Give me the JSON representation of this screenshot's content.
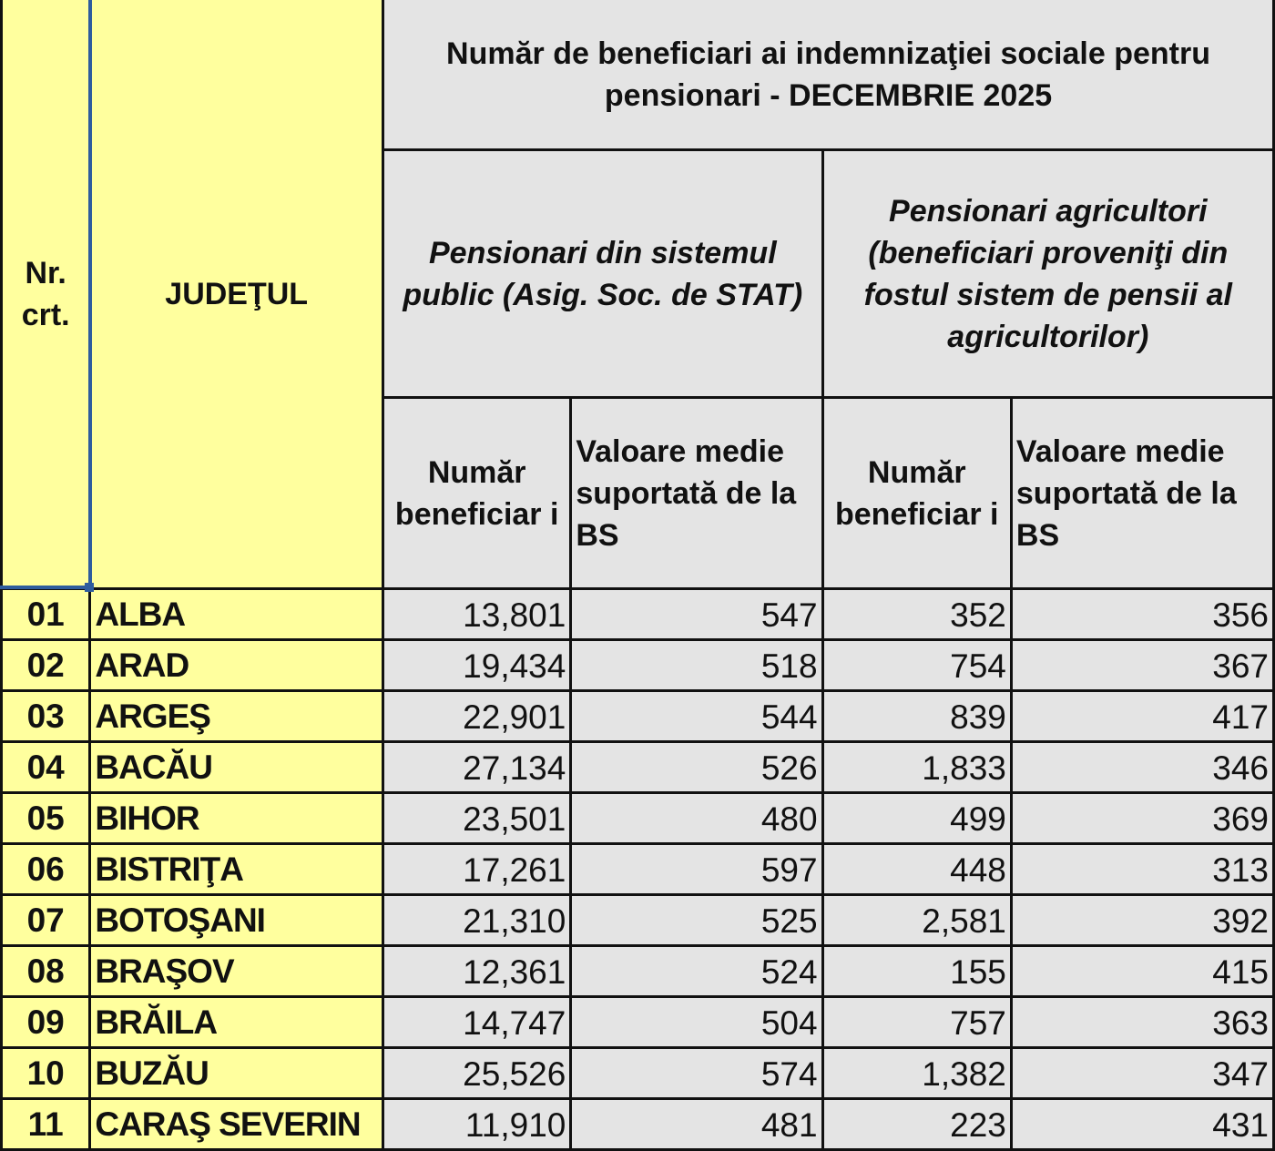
{
  "header": {
    "nr": "Nr. crt.",
    "judet": "JUDEŢUL",
    "title": "Număr de beneficiari ai indemnizaţiei sociale pentru pensionari - DECEMBRIE 2025",
    "group1": "Pensionari din sistemul public (Asig. Soc. de STAT)",
    "group2": "Pensionari agricultori (beneficiari proveniţi din fostul sistem de pensii al agricultorilor)",
    "col_numar": "Număr beneficiar i",
    "col_valoare": "Valoare medie suportată de la BS"
  },
  "colors": {
    "yellow": "#ffff9e",
    "gray": "#e4e4e4",
    "selection": "#2e5c9e"
  },
  "rows": [
    {
      "nr": "01",
      "judet": "ALBA",
      "pub_nr": "13,801",
      "pub_val": "547",
      "agr_nr": "352",
      "agr_val": "356"
    },
    {
      "nr": "02",
      "judet": "ARAD",
      "pub_nr": "19,434",
      "pub_val": "518",
      "agr_nr": "754",
      "agr_val": "367"
    },
    {
      "nr": "03",
      "judet": "ARGEŞ",
      "pub_nr": "22,901",
      "pub_val": "544",
      "agr_nr": "839",
      "agr_val": "417"
    },
    {
      "nr": "04",
      "judet": "BACĂU",
      "pub_nr": "27,134",
      "pub_val": "526",
      "agr_nr": "1,833",
      "agr_val": "346"
    },
    {
      "nr": "05",
      "judet": "BIHOR",
      "pub_nr": "23,501",
      "pub_val": "480",
      "agr_nr": "499",
      "agr_val": "369"
    },
    {
      "nr": "06",
      "judet": "BISTRIŢA",
      "pub_nr": "17,261",
      "pub_val": "597",
      "agr_nr": "448",
      "agr_val": "313"
    },
    {
      "nr": "07",
      "judet": "BOTOŞANI",
      "pub_nr": "21,310",
      "pub_val": "525",
      "agr_nr": "2,581",
      "agr_val": "392"
    },
    {
      "nr": "08",
      "judet": "BRAŞOV",
      "pub_nr": "12,361",
      "pub_val": "524",
      "agr_nr": "155",
      "agr_val": "415"
    },
    {
      "nr": "09",
      "judet": "BRĂILA",
      "pub_nr": "14,747",
      "pub_val": "504",
      "agr_nr": "757",
      "agr_val": "363"
    },
    {
      "nr": "10",
      "judet": "BUZĂU",
      "pub_nr": "25,526",
      "pub_val": "574",
      "agr_nr": "1,382",
      "agr_val": "347"
    },
    {
      "nr": "11",
      "judet": "CARAŞ SEVERIN",
      "pub_nr": "11,910",
      "pub_val": "481",
      "agr_nr": "223",
      "agr_val": "431"
    }
  ]
}
